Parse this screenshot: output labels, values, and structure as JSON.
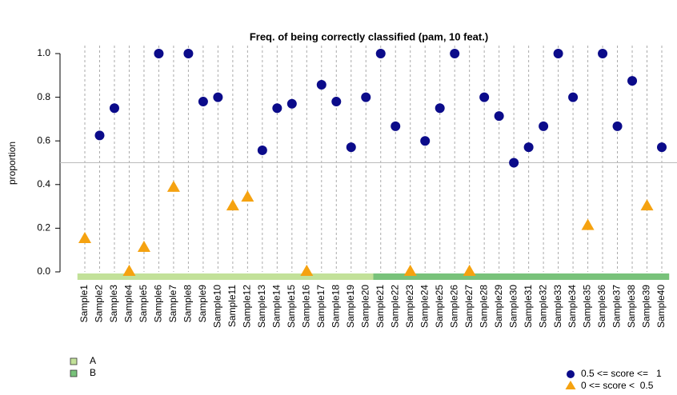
{
  "chart_data": {
    "type": "scatter",
    "title": "Freq. of being correctly classified (pam, 10 feat.)",
    "y_label": "proportion",
    "categories": [
      "Sample1",
      "Sample2",
      "Sample3",
      "Sample4",
      "Sample5",
      "Sample6",
      "Sample7",
      "Sample8",
      "Sample9",
      "Sample10",
      "Sample11",
      "Sample12",
      "Sample13",
      "Sample14",
      "Sample15",
      "Sample16",
      "Sample17",
      "Sample18",
      "Sample19",
      "Sample20",
      "Sample21",
      "Sample22",
      "Sample23",
      "Sample24",
      "Sample25",
      "Sample26",
      "Sample27",
      "Sample28",
      "Sample29",
      "Sample30",
      "Sample31",
      "Sample32",
      "Sample33",
      "Sample34",
      "Sample35",
      "Sample36",
      "Sample37",
      "Sample38",
      "Sample39",
      "Sample40"
    ],
    "values": [
      0.15,
      0.625,
      0.75,
      0,
      0.11,
      1,
      0.385,
      1,
      0.78,
      0.8,
      0.3,
      0.34,
      0.557,
      0.75,
      0.77,
      0,
      0.857,
      0.78,
      0.571,
      0.8,
      1,
      0.667,
      0,
      0.6,
      0.75,
      1,
      0,
      0.8,
      0.714,
      0.5,
      0.571,
      0.667,
      1,
      0.8,
      0.21,
      1,
      0.667,
      0.875,
      0.3,
      0.571
    ],
    "threshold": 0.5,
    "ylim": [
      -0.05,
      1.05
    ],
    "yticks": [
      {
        "value": 0,
        "label": "0.0"
      },
      {
        "value": 0.2,
        "label": "0.2"
      },
      {
        "value": 0.4,
        "label": "0.4"
      },
      {
        "value": 0.6,
        "label": "0.6"
      },
      {
        "value": 0.8,
        "label": "0.8"
      },
      {
        "value": 1,
        "label": "1.0"
      }
    ],
    "groups": [
      {
        "name": "A",
        "color": "#c2e199",
        "size": 20
      },
      {
        "name": "B",
        "color": "#78c27a",
        "size": 20
      }
    ],
    "markers": [
      {
        "label": "0.5 <= score <=   1",
        "color": "#0b0b8a",
        "shape": "circle"
      },
      {
        "label": "0 <= score <  0.5",
        "color": "#f5a210",
        "shape": "triangle"
      }
    ]
  }
}
